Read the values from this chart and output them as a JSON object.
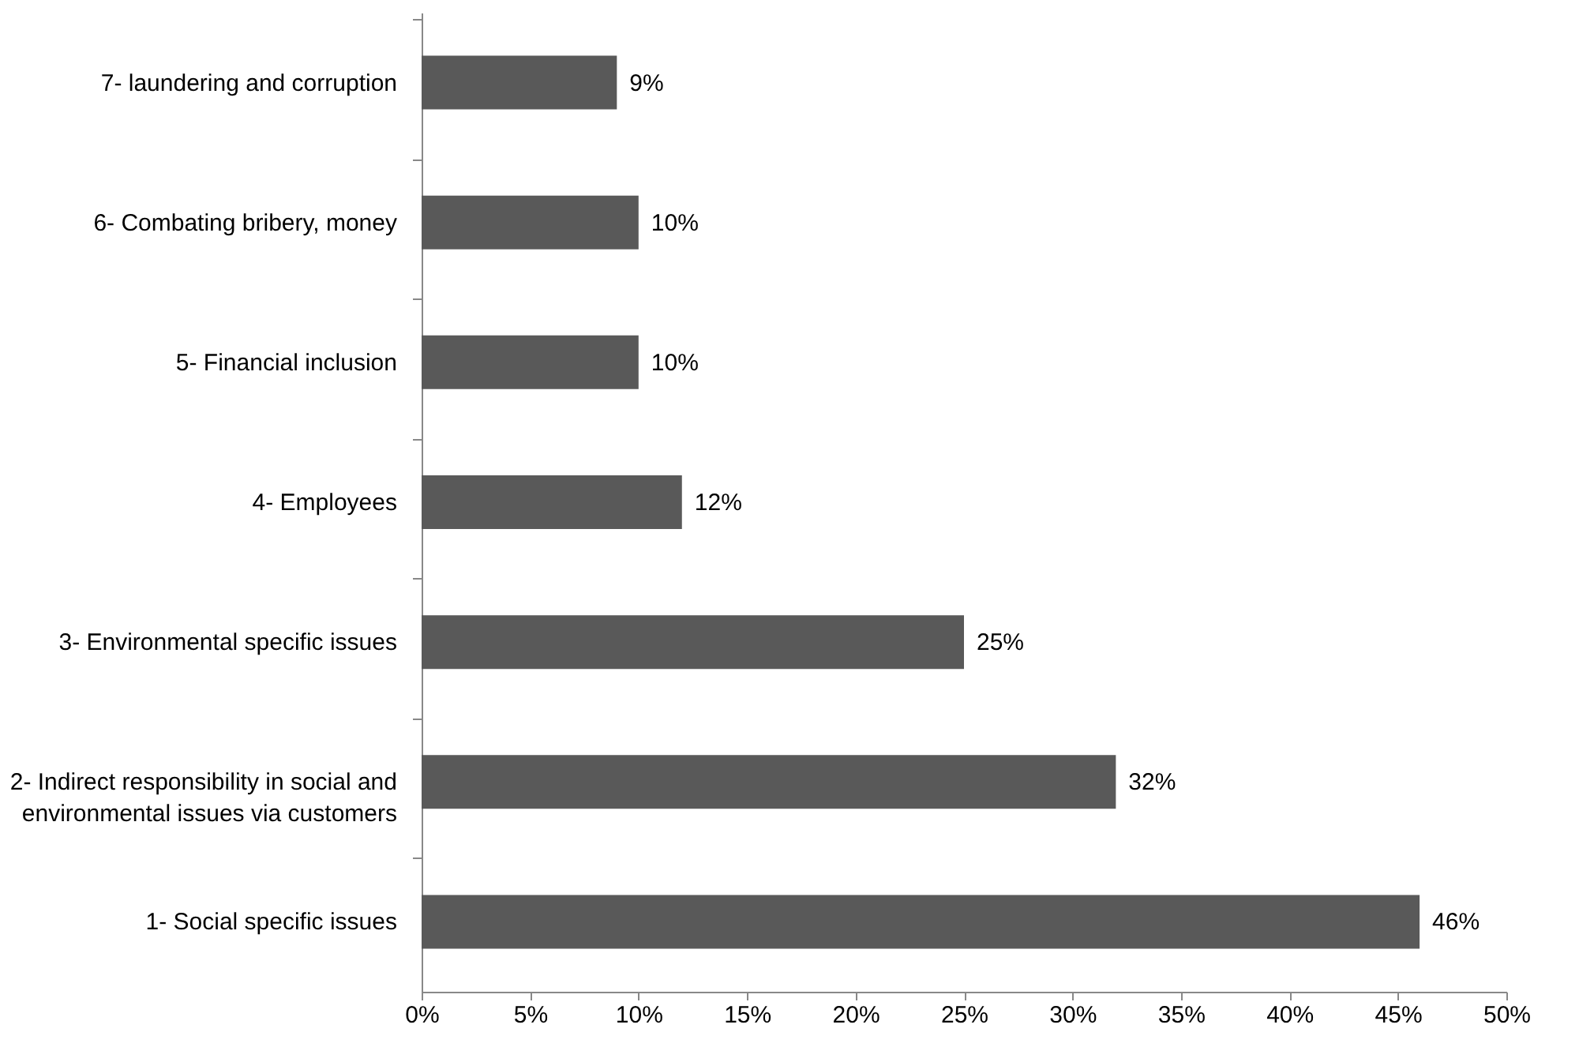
{
  "chart_data": {
    "type": "bar",
    "orientation": "horizontal",
    "categories": [
      "7-  laundering and corruption",
      "6-  Combating bribery, money",
      "5-  Financial inclusion",
      "4-  Employees",
      "3-  Environmental specific issues",
      "2- Indirect responsibility in social and\nenvironmental issues via customers",
      "1- Social specific issues"
    ],
    "values": [
      9,
      10,
      10,
      12,
      25,
      32,
      46
    ],
    "value_labels": [
      "9%",
      "10%",
      "10%",
      "12%",
      "25%",
      "32%",
      "46%"
    ],
    "color": "#595959",
    "xlim": [
      0,
      50
    ],
    "xticks": [
      {
        "value": 0,
        "label": "0%"
      },
      {
        "value": 5,
        "label": "5%"
      },
      {
        "value": 10,
        "label": "10%"
      },
      {
        "value": 15,
        "label": "15%"
      },
      {
        "value": 20,
        "label": "20%"
      },
      {
        "value": 25,
        "label": "25%"
      },
      {
        "value": 30,
        "label": "30%"
      },
      {
        "value": 35,
        "label": "35%"
      },
      {
        "value": 40,
        "label": "40%"
      },
      {
        "value": 45,
        "label": "45%"
      },
      {
        "value": 50,
        "label": "50%"
      }
    ],
    "grid": false
  }
}
